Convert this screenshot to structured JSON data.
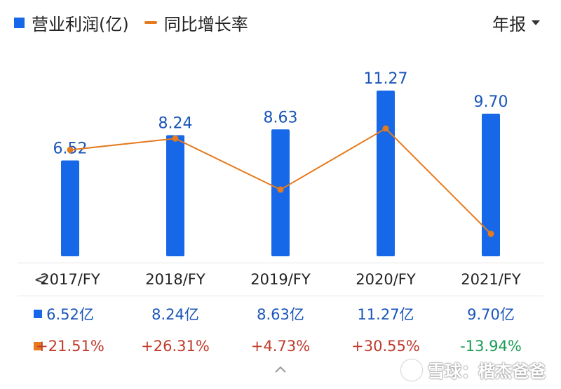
{
  "legend": {
    "profit_label": "营业利润(亿)",
    "growth_label": "同比增长率"
  },
  "period_selector": {
    "label": "年报"
  },
  "colors": {
    "bar": "#1668e8",
    "line": "#e67a1e",
    "positive": "#c0392b",
    "negative": "#1a9b55",
    "value_text": "#1a55b8"
  },
  "chart_data": {
    "type": "bar",
    "categories": [
      "2017/FY",
      "2018/FY",
      "2019/FY",
      "2020/FY",
      "2021/FY"
    ],
    "series": [
      {
        "name": "营业利润(亿)",
        "type": "bar",
        "values": [
          6.52,
          8.24,
          8.63,
          11.27,
          9.7
        ],
        "labels": [
          "6.52",
          "8.24",
          "8.63",
          "11.27",
          "9.70"
        ]
      },
      {
        "name": "同比增长率",
        "type": "line",
        "values": [
          21.51,
          26.31,
          4.73,
          30.55,
          -13.94
        ],
        "unit": "%"
      }
    ],
    "legend_position": "top-left",
    "grid": false
  },
  "table": {
    "years": [
      "2017/FY",
      "2018/FY",
      "2019/FY",
      "2020/FY",
      "2021/FY"
    ],
    "profit": [
      "6.52亿",
      "8.24亿",
      "8.63亿",
      "11.27亿",
      "9.70亿"
    ],
    "growth": [
      "+21.51%",
      "+26.31%",
      "+4.73%",
      "+30.55%",
      "-13.94%"
    ]
  },
  "nav": {
    "prev_icon": "chevron-left-icon",
    "prev_glyph": "<",
    "collapse_icon": "chevron-up-icon"
  },
  "watermark": {
    "text": "雪球：楷杰爸爸",
    "icon": "xueqiu-logo-icon"
  }
}
